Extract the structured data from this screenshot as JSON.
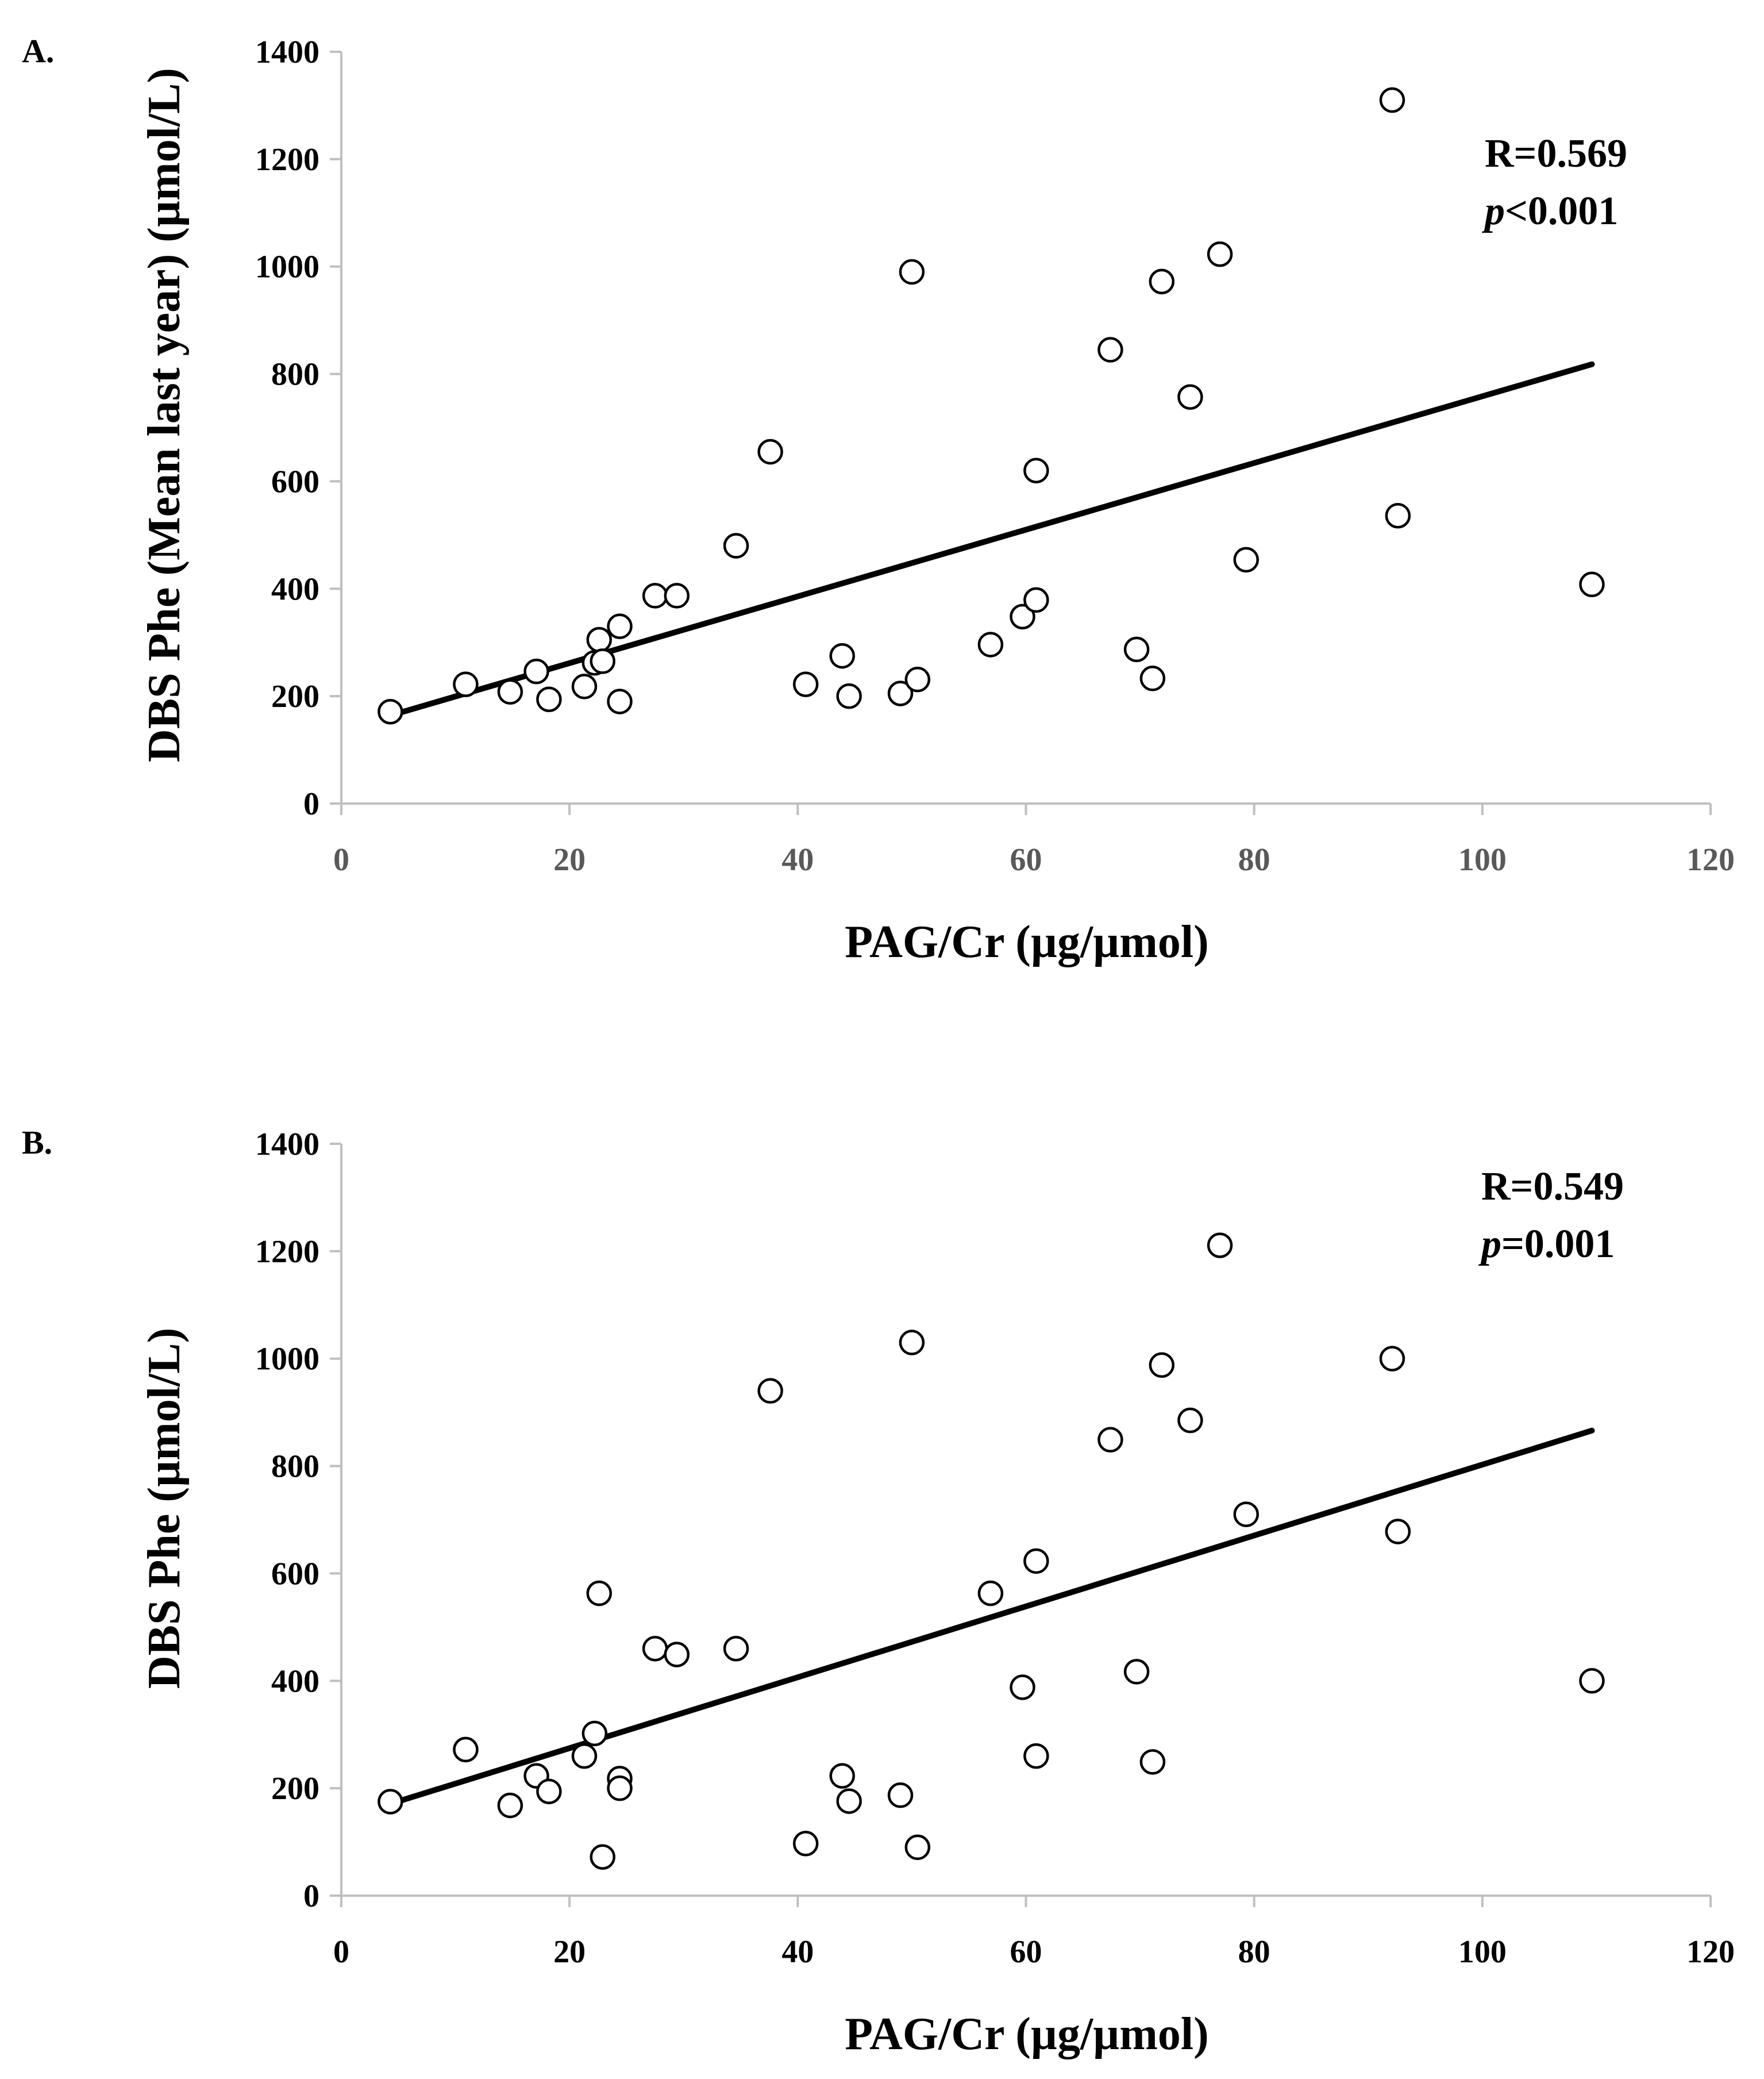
{
  "colors": {
    "marker_stroke": "#000000",
    "trendline": "#000000",
    "axis": "#bfbfbf",
    "tick_x_A": "#595959",
    "tick_x_B": "#000000"
  },
  "chart_data": [
    {
      "panel_label": "A.",
      "type": "scatter",
      "xlabel": "PAG/Cr (µg/µmol)",
      "ylabel": "DBS Phe (Mean last year) (µmol/L)",
      "xlim": [
        0,
        120
      ],
      "ylim": [
        0,
        1400
      ],
      "xticks": [
        0,
        20,
        40,
        60,
        80,
        100,
        120
      ],
      "yticks": [
        0,
        200,
        400,
        600,
        800,
        1000,
        1200,
        1400
      ],
      "annotation": {
        "r": "R=0.569",
        "p_letter": "p",
        "p_rest": "<0.001"
      },
      "trendline": {
        "x": [
          4.3,
          109.6
        ],
        "y": [
          164,
          818
        ]
      },
      "points": [
        {
          "x": 4.3,
          "y": 171
        },
        {
          "x": 10.9,
          "y": 222
        },
        {
          "x": 14.8,
          "y": 208
        },
        {
          "x": 17.1,
          "y": 246
        },
        {
          "x": 18.2,
          "y": 194
        },
        {
          "x": 21.3,
          "y": 218
        },
        {
          "x": 22.2,
          "y": 262
        },
        {
          "x": 22.6,
          "y": 305
        },
        {
          "x": 22.9,
          "y": 265
        },
        {
          "x": 24.4,
          "y": 330
        },
        {
          "x": 24.4,
          "y": 190
        },
        {
          "x": 27.5,
          "y": 387
        },
        {
          "x": 29.4,
          "y": 387
        },
        {
          "x": 34.6,
          "y": 480
        },
        {
          "x": 37.6,
          "y": 655
        },
        {
          "x": 40.7,
          "y": 222
        },
        {
          "x": 43.9,
          "y": 275
        },
        {
          "x": 44.5,
          "y": 200
        },
        {
          "x": 49.0,
          "y": 205
        },
        {
          "x": 50.0,
          "y": 990
        },
        {
          "x": 50.5,
          "y": 231
        },
        {
          "x": 56.9,
          "y": 296
        },
        {
          "x": 59.7,
          "y": 348
        },
        {
          "x": 60.9,
          "y": 620
        },
        {
          "x": 60.9,
          "y": 379
        },
        {
          "x": 67.4,
          "y": 845
        },
        {
          "x": 69.7,
          "y": 287
        },
        {
          "x": 71.1,
          "y": 233
        },
        {
          "x": 71.9,
          "y": 972
        },
        {
          "x": 74.4,
          "y": 757
        },
        {
          "x": 77.0,
          "y": 1023
        },
        {
          "x": 79.3,
          "y": 454
        },
        {
          "x": 92.1,
          "y": 1310
        },
        {
          "x": 92.6,
          "y": 536
        },
        {
          "x": 109.6,
          "y": 408
        }
      ]
    },
    {
      "panel_label": "B.",
      "type": "scatter",
      "xlabel": "PAG/Cr (µg/µmol)",
      "ylabel": "DBS Phe (µmol/L)",
      "xlim": [
        0,
        120
      ],
      "ylim": [
        0,
        1400
      ],
      "xticks": [
        0,
        20,
        40,
        60,
        80,
        100,
        120
      ],
      "yticks": [
        0,
        200,
        400,
        600,
        800,
        1000,
        1200,
        1400
      ],
      "annotation": {
        "r": "R=0.549",
        "p_letter": "p",
        "p_rest": "=0.001"
      },
      "trendline": {
        "x": [
          4.3,
          109.6
        ],
        "y": [
          171,
          866
        ]
      },
      "points": [
        {
          "x": 4.3,
          "y": 175
        },
        {
          "x": 10.9,
          "y": 272
        },
        {
          "x": 14.8,
          "y": 168
        },
        {
          "x": 17.1,
          "y": 223
        },
        {
          "x": 18.2,
          "y": 194
        },
        {
          "x": 21.3,
          "y": 260
        },
        {
          "x": 22.2,
          "y": 302
        },
        {
          "x": 22.6,
          "y": 563
        },
        {
          "x": 22.9,
          "y": 72
        },
        {
          "x": 24.4,
          "y": 218
        },
        {
          "x": 24.4,
          "y": 200
        },
        {
          "x": 27.5,
          "y": 460
        },
        {
          "x": 29.4,
          "y": 449
        },
        {
          "x": 34.6,
          "y": 460
        },
        {
          "x": 37.6,
          "y": 940
        },
        {
          "x": 40.7,
          "y": 97
        },
        {
          "x": 43.9,
          "y": 223
        },
        {
          "x": 44.5,
          "y": 176
        },
        {
          "x": 49.0,
          "y": 187
        },
        {
          "x": 50.0,
          "y": 1030
        },
        {
          "x": 50.5,
          "y": 90
        },
        {
          "x": 56.9,
          "y": 563
        },
        {
          "x": 59.7,
          "y": 388
        },
        {
          "x": 60.9,
          "y": 623
        },
        {
          "x": 60.9,
          "y": 260
        },
        {
          "x": 67.4,
          "y": 849
        },
        {
          "x": 69.7,
          "y": 417
        },
        {
          "x": 71.1,
          "y": 249
        },
        {
          "x": 71.9,
          "y": 988
        },
        {
          "x": 74.4,
          "y": 885
        },
        {
          "x": 77.0,
          "y": 1211
        },
        {
          "x": 79.3,
          "y": 710
        },
        {
          "x": 92.1,
          "y": 1000
        },
        {
          "x": 92.6,
          "y": 678
        },
        {
          "x": 109.6,
          "y": 400
        }
      ]
    }
  ]
}
